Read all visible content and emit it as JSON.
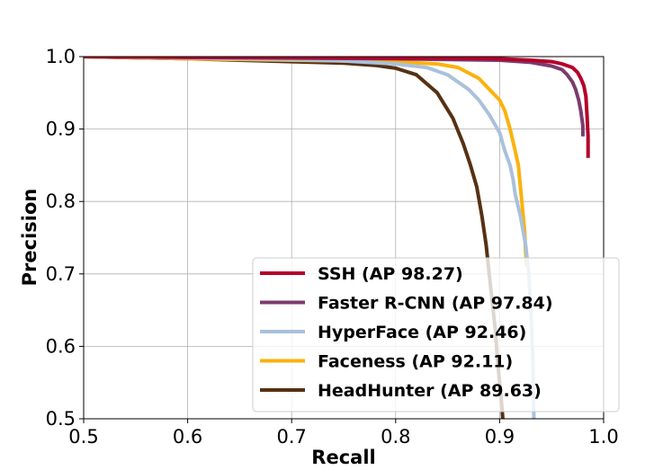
{
  "chart_data": {
    "type": "line",
    "title": "",
    "xlabel": "Recall",
    "ylabel": "Precision",
    "xlim": [
      0.5,
      1.0
    ],
    "ylim": [
      0.5,
      1.0
    ],
    "xticks": [
      "0.5",
      "0.6",
      "0.7",
      "0.8",
      "0.9",
      "1.0"
    ],
    "yticks": [
      "0.5",
      "0.6",
      "0.7",
      "0.8",
      "0.9",
      "1.0"
    ],
    "grid": true,
    "legend_position": "bottom-right",
    "series": [
      {
        "name": "SSH (AP 98.27)",
        "color": "#b5002a",
        "x": [
          0.5,
          0.6,
          0.7,
          0.8,
          0.85,
          0.9,
          0.93,
          0.95,
          0.96,
          0.97,
          0.975,
          0.978,
          0.981,
          0.983,
          0.984,
          0.985,
          0.985
        ],
        "y": [
          1.0,
          0.999,
          0.999,
          0.998,
          0.998,
          0.997,
          0.995,
          0.993,
          0.99,
          0.985,
          0.978,
          0.97,
          0.96,
          0.945,
          0.92,
          0.89,
          0.86
        ]
      },
      {
        "name": "Faster R-CNN (AP 97.84)",
        "color": "#7b3b6e",
        "x": [
          0.5,
          0.6,
          0.7,
          0.8,
          0.9,
          0.93,
          0.95,
          0.96,
          0.965,
          0.97,
          0.973,
          0.976,
          0.978,
          0.98,
          0.98
        ],
        "y": [
          1.0,
          0.999,
          0.998,
          0.997,
          0.995,
          0.992,
          0.987,
          0.982,
          0.975,
          0.965,
          0.955,
          0.94,
          0.925,
          0.905,
          0.89
        ]
      },
      {
        "name": "HyperFace (AP 92.46)",
        "color": "#a9c1db",
        "x": [
          0.5,
          0.6,
          0.7,
          0.75,
          0.8,
          0.83,
          0.85,
          0.87,
          0.88,
          0.89,
          0.9,
          0.905,
          0.91,
          0.913,
          0.915,
          0.92,
          0.925,
          0.928,
          0.93,
          0.932,
          0.933
        ],
        "y": [
          1.0,
          0.998,
          0.996,
          0.994,
          0.99,
          0.985,
          0.975,
          0.955,
          0.94,
          0.92,
          0.895,
          0.87,
          0.85,
          0.83,
          0.81,
          0.78,
          0.74,
          0.7,
          0.65,
          0.58,
          0.5
        ]
      },
      {
        "name": "Faceness (AP 92.11)",
        "color": "#fbb20c",
        "x": [
          0.5,
          0.6,
          0.7,
          0.8,
          0.84,
          0.86,
          0.88,
          0.89,
          0.9,
          0.905,
          0.91,
          0.915,
          0.918,
          0.92,
          0.922,
          0.924,
          0.925,
          0.926
        ],
        "y": [
          1.0,
          0.997,
          0.995,
          0.993,
          0.99,
          0.985,
          0.97,
          0.955,
          0.94,
          0.925,
          0.9,
          0.87,
          0.85,
          0.82,
          0.79,
          0.76,
          0.73,
          0.71
        ]
      },
      {
        "name": "HeadHunter (AP 89.63)",
        "color": "#563113",
        "x": [
          0.5,
          0.6,
          0.65,
          0.7,
          0.75,
          0.78,
          0.8,
          0.82,
          0.84,
          0.855,
          0.865,
          0.872,
          0.878,
          0.883,
          0.887,
          0.89,
          0.893,
          0.896,
          0.898,
          0.9,
          0.902,
          0.903
        ],
        "y": [
          1.0,
          0.997,
          0.995,
          0.993,
          0.991,
          0.988,
          0.984,
          0.975,
          0.95,
          0.915,
          0.88,
          0.85,
          0.82,
          0.78,
          0.74,
          0.7,
          0.66,
          0.62,
          0.58,
          0.55,
          0.52,
          0.5
        ]
      }
    ]
  }
}
